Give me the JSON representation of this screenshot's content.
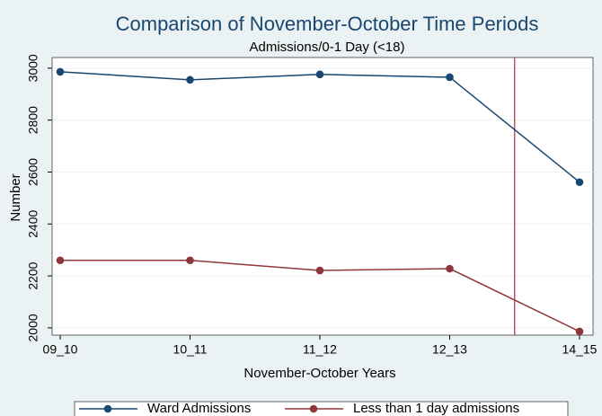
{
  "chart_data": {
    "type": "line",
    "title": "Comparison of November-October Time Periods",
    "subtitle": "Admissions/0-1 Day (<18)",
    "x_label": "November-October Years",
    "y_label": "Number",
    "categories": [
      "09_10",
      "10_11",
      "11_12",
      "12_13",
      "14_15"
    ],
    "series": [
      {
        "name": "Ward Admissions",
        "color": "#1a476f",
        "values": [
          2986,
          2955,
          2976,
          2965,
          2561
        ]
      },
      {
        "name": "Less than 1 day admissions",
        "color": "#90353b",
        "values": [
          2260,
          2260,
          2221,
          2228,
          1986
        ]
      }
    ],
    "ylim": [
      1972,
      3041
    ],
    "yticks": [
      2000,
      2200,
      2400,
      2600,
      2800,
      3000
    ],
    "grid": true,
    "reference_line": {
      "x": 3.5,
      "color": "#c0365a"
    },
    "legend": "bottom"
  }
}
